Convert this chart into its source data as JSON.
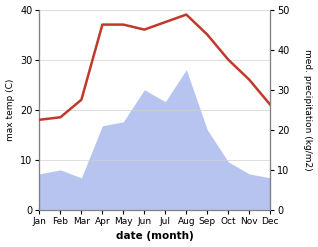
{
  "months": [
    "Jan",
    "Feb",
    "Mar",
    "Apr",
    "May",
    "Jun",
    "Jul",
    "Aug",
    "Sep",
    "Oct",
    "Nov",
    "Dec"
  ],
  "temperature": [
    18.0,
    18.5,
    22.0,
    37.0,
    37.0,
    36.0,
    37.5,
    39.0,
    35.0,
    30.0,
    26.0,
    21.0
  ],
  "precipitation": [
    9.0,
    10.0,
    8.0,
    21.0,
    22.0,
    30.0,
    27.0,
    35.0,
    20.0,
    12.0,
    9.0,
    8.0
  ],
  "temp_color": "#c0392b",
  "precip_fill_color": "#b8c4f0",
  "precip_line_color": "#b8c4f0",
  "temp_ylim": [
    0,
    40
  ],
  "precip_ylim": [
    0,
    50
  ],
  "temp_yticks": [
    0,
    10,
    20,
    30,
    40
  ],
  "precip_yticks": [
    0,
    10,
    20,
    30,
    40,
    50
  ],
  "ylabel_left": "max temp (C)",
  "ylabel_right": "med. precipitation (kg/m2)",
  "xlabel": "date (month)",
  "figsize": [
    3.18,
    2.47
  ],
  "dpi": 100
}
